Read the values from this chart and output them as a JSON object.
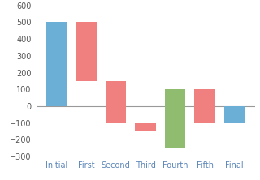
{
  "categories": [
    "Initial",
    "First",
    "Second",
    "Third",
    "Fourth",
    "Fifth",
    "Final"
  ],
  "bar_bottoms": [
    0,
    150,
    -100,
    -150,
    -250,
    -100,
    -100
  ],
  "bar_heights": [
    500,
    350,
    250,
    50,
    350,
    200,
    100
  ],
  "bar_colors": [
    "#6baed6",
    "#f08080",
    "#f08080",
    "#f08080",
    "#8fbc6e",
    "#f08080",
    "#6baed6"
  ],
  "ylim": [
    -300,
    600
  ],
  "yticks": [
    -300,
    -200,
    -100,
    0,
    100,
    200,
    300,
    400,
    500,
    600
  ],
  "zero_line_color": "#999999",
  "background_color": "#ffffff",
  "bar_width": 0.7,
  "tick_fontsize": 7,
  "xlabel_color": "#5a85b8",
  "ylabel_color": "#555555"
}
